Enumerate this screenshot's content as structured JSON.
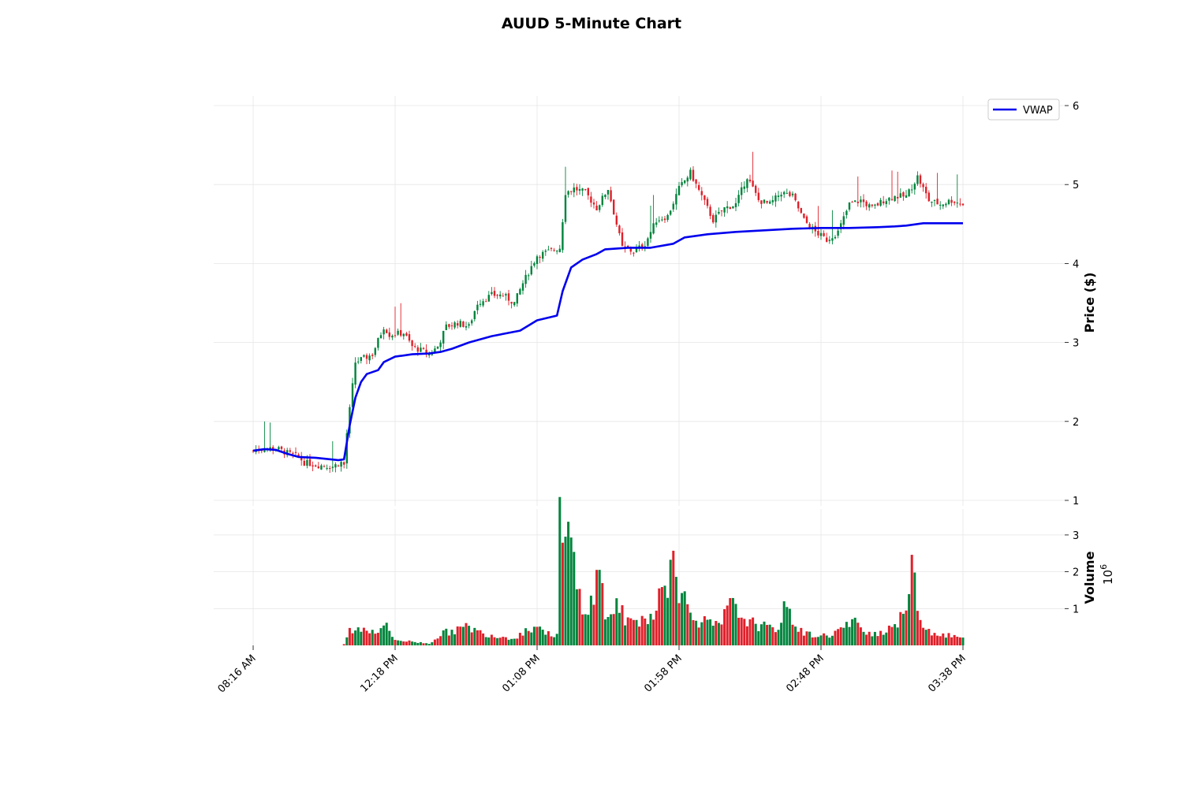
{
  "chart_data": {
    "type": "candlestick",
    "title": "AUUD 5-Minute Chart",
    "colors": {
      "up": "#00843c",
      "down": "#e0202a",
      "vwap": "#0000ee",
      "grid": "#e6e6e6"
    },
    "x_tick_labels": [
      "08:16 AM",
      "12:18 PM",
      "01:08 PM",
      "01:58 PM",
      "02:48 PM",
      "03:38 PM"
    ],
    "price_panel": {
      "ylabel": "Price ($)",
      "ylim": [
        1,
        6
      ],
      "yticks": [
        1,
        2,
        3,
        4,
        5,
        6
      ],
      "grid": true
    },
    "volume_panel": {
      "ylabel": "Volume",
      "exponent_label": "10",
      "exponent_power": "6",
      "ylim": [
        0,
        3.5
      ],
      "yticks": [
        1,
        2,
        3
      ],
      "grid": true
    },
    "legend": {
      "entries": [
        "VWAP"
      ],
      "placement": "top-right"
    },
    "price_keypoints": [
      [
        0,
        1.63
      ],
      [
        4,
        1.66
      ],
      [
        8,
        1.66
      ],
      [
        12,
        1.6
      ],
      [
        16,
        1.55
      ],
      [
        18,
        1.48
      ],
      [
        22,
        1.45
      ],
      [
        28,
        1.43
      ],
      [
        31,
        1.48
      ],
      [
        32,
        1.45
      ],
      [
        33,
        1.85
      ],
      [
        36,
        2.75
      ],
      [
        42,
        2.85
      ],
      [
        46,
        3.2
      ],
      [
        48,
        3.1
      ],
      [
        53,
        3.12
      ],
      [
        56,
        2.95
      ],
      [
        62,
        2.85
      ],
      [
        65,
        2.95
      ],
      [
        68,
        3.2
      ],
      [
        72,
        3.25
      ],
      [
        76,
        3.2
      ],
      [
        79,
        3.5
      ],
      [
        84,
        3.6
      ],
      [
        88,
        3.6
      ],
      [
        92,
        3.5
      ],
      [
        95,
        3.75
      ],
      [
        100,
        4.1
      ],
      [
        104,
        4.15
      ],
      [
        108,
        4.2
      ],
      [
        110,
        4.9
      ],
      [
        113,
        4.95
      ],
      [
        117,
        4.9
      ],
      [
        121,
        4.7
      ],
      [
        125,
        4.95
      ],
      [
        130,
        4.2
      ],
      [
        134,
        4.15
      ],
      [
        138,
        4.25
      ],
      [
        142,
        4.55
      ],
      [
        146,
        4.6
      ],
      [
        150,
        4.95
      ],
      [
        154,
        5.15
      ],
      [
        158,
        4.85
      ],
      [
        162,
        4.55
      ],
      [
        166,
        4.7
      ],
      [
        170,
        4.75
      ],
      [
        174,
        5.1
      ],
      [
        178,
        4.8
      ],
      [
        182,
        4.75
      ],
      [
        186,
        4.9
      ],
      [
        190,
        4.85
      ],
      [
        194,
        4.55
      ],
      [
        198,
        4.4
      ],
      [
        202,
        4.3
      ],
      [
        206,
        4.4
      ],
      [
        210,
        4.75
      ],
      [
        214,
        4.8
      ],
      [
        218,
        4.7
      ],
      [
        222,
        4.8
      ],
      [
        226,
        4.85
      ],
      [
        230,
        4.85
      ],
      [
        234,
        5.1
      ],
      [
        238,
        4.8
      ],
      [
        242,
        4.75
      ],
      [
        246,
        4.8
      ],
      [
        250,
        4.75
      ]
    ],
    "volume_keypoints": [
      [
        0,
        0.0
      ],
      [
        31,
        0.0
      ],
      [
        32,
        0.03
      ],
      [
        34,
        0.4
      ],
      [
        38,
        0.45
      ],
      [
        44,
        0.4
      ],
      [
        46,
        0.6
      ],
      [
        50,
        0.15
      ],
      [
        56,
        0.1
      ],
      [
        62,
        0.05
      ],
      [
        66,
        0.3
      ],
      [
        70,
        0.4
      ],
      [
        76,
        0.5
      ],
      [
        80,
        0.35
      ],
      [
        86,
        0.25
      ],
      [
        92,
        0.2
      ],
      [
        96,
        0.4
      ],
      [
        100,
        0.55
      ],
      [
        104,
        0.3
      ],
      [
        107,
        0.3
      ],
      [
        108,
        3.3
      ],
      [
        110,
        2.6
      ],
      [
        112,
        2.9
      ],
      [
        114,
        1.5
      ],
      [
        116,
        1.2
      ],
      [
        118,
        0.9
      ],
      [
        120,
        1.4
      ],
      [
        122,
        2.1
      ],
      [
        124,
        0.8
      ],
      [
        126,
        0.9
      ],
      [
        128,
        1.1
      ],
      [
        132,
        0.6
      ],
      [
        136,
        0.7
      ],
      [
        140,
        0.8
      ],
      [
        144,
        1.5
      ],
      [
        146,
        1.3
      ],
      [
        148,
        3.4
      ],
      [
        150,
        1.6
      ],
      [
        152,
        1.2
      ],
      [
        156,
        0.7
      ],
      [
        160,
        0.6
      ],
      [
        164,
        0.5
      ],
      [
        168,
        1.1
      ],
      [
        172,
        0.8
      ],
      [
        176,
        0.6
      ],
      [
        180,
        0.5
      ],
      [
        184,
        0.4
      ],
      [
        188,
        1.1
      ],
      [
        192,
        0.4
      ],
      [
        196,
        0.3
      ],
      [
        200,
        0.25
      ],
      [
        204,
        0.3
      ],
      [
        208,
        0.5
      ],
      [
        212,
        0.6
      ],
      [
        216,
        0.4
      ],
      [
        220,
        0.3
      ],
      [
        224,
        0.5
      ],
      [
        228,
        0.7
      ],
      [
        230,
        1.0
      ],
      [
        232,
        2.2
      ],
      [
        234,
        0.9
      ],
      [
        238,
        0.4
      ],
      [
        242,
        0.3
      ],
      [
        246,
        0.25
      ],
      [
        250,
        0.2
      ]
    ],
    "vwap_keypoints": [
      [
        0,
        1.63
      ],
      [
        4,
        1.65
      ],
      [
        8,
        1.64
      ],
      [
        12,
        1.59
      ],
      [
        16,
        1.55
      ],
      [
        22,
        1.54
      ],
      [
        30,
        1.51
      ],
      [
        32,
        1.52
      ],
      [
        34,
        1.95
      ],
      [
        36,
        2.3
      ],
      [
        38,
        2.5
      ],
      [
        40,
        2.6
      ],
      [
        44,
        2.65
      ],
      [
        46,
        2.75
      ],
      [
        50,
        2.82
      ],
      [
        56,
        2.85
      ],
      [
        62,
        2.86
      ],
      [
        66,
        2.88
      ],
      [
        70,
        2.92
      ],
      [
        76,
        3.0
      ],
      [
        84,
        3.08
      ],
      [
        94,
        3.15
      ],
      [
        100,
        3.28
      ],
      [
        107,
        3.34
      ],
      [
        109,
        3.65
      ],
      [
        112,
        3.95
      ],
      [
        116,
        4.05
      ],
      [
        121,
        4.12
      ],
      [
        124,
        4.18
      ],
      [
        132,
        4.2
      ],
      [
        140,
        4.2
      ],
      [
        148,
        4.25
      ],
      [
        152,
        4.33
      ],
      [
        160,
        4.37
      ],
      [
        170,
        4.4
      ],
      [
        180,
        4.42
      ],
      [
        190,
        4.44
      ],
      [
        200,
        4.45
      ],
      [
        210,
        4.45
      ],
      [
        220,
        4.46
      ],
      [
        226,
        4.47
      ],
      [
        230,
        4.48
      ],
      [
        236,
        4.51
      ],
      [
        242,
        4.51
      ],
      [
        250,
        4.51
      ]
    ]
  }
}
